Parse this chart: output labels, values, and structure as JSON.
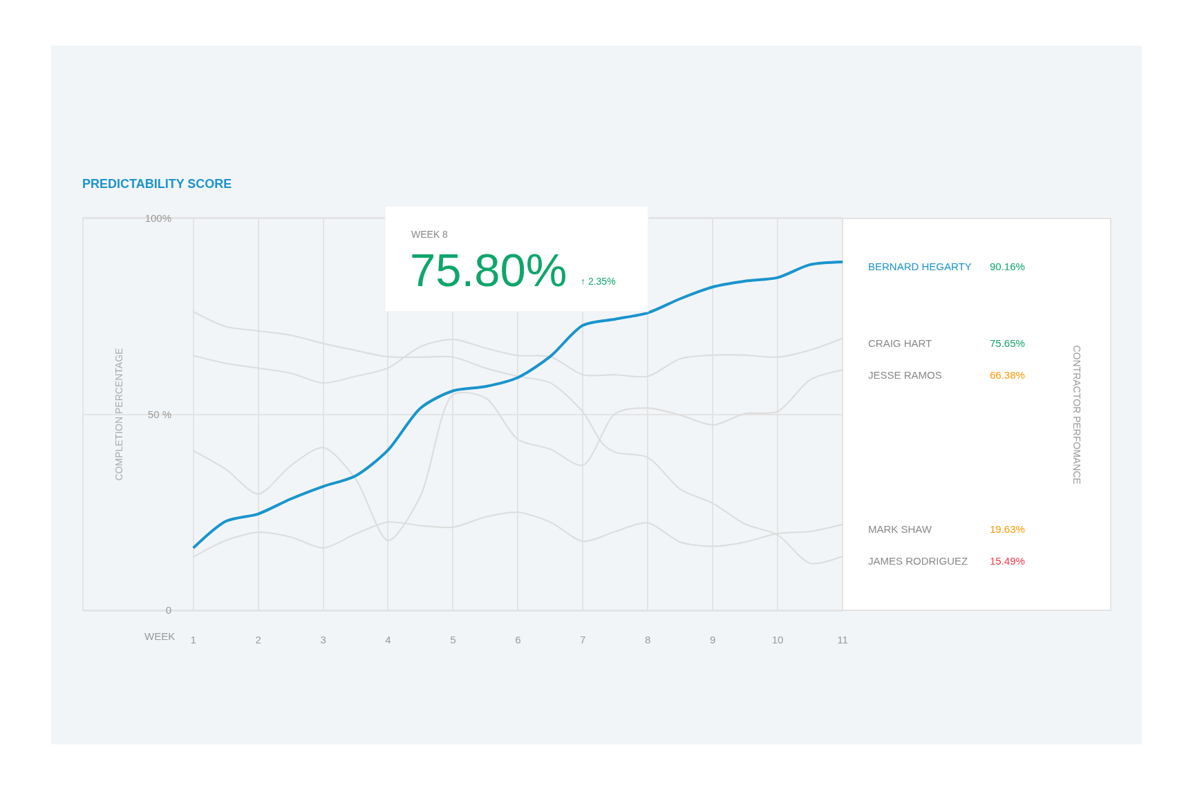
{
  "chart_data": {
    "type": "line",
    "title": "PREDICTABILITY SCORE",
    "xlabel": "WEEK",
    "ylabel": "COMPLETION PERCENTAGE",
    "xlim": [
      -0.7,
      11
    ],
    "xticks": [
      1,
      2,
      3,
      4,
      5,
      6,
      7,
      8,
      9,
      10,
      11
    ],
    "ylim": [
      0,
      100
    ],
    "yticks": [
      0,
      {
        "value": 50,
        "label": "50 %"
      },
      {
        "value": 100,
        "label": "100%"
      }
    ],
    "grid": true,
    "marker": "none",
    "line_style": "solid",
    "series": [
      {
        "name": "BERNARD HEGARTY",
        "color": "#1a94cc",
        "x": [
          1,
          1.5,
          2,
          2.5,
          3,
          3.5,
          4,
          4.5,
          5,
          5.5,
          6,
          6.5,
          7,
          7.5,
          8,
          8.5,
          9,
          9.5,
          10,
          10.5,
          11
        ],
        "values": [
          15.9,
          22.7,
          24.6,
          28.4,
          31.6,
          34.3,
          40.9,
          51.6,
          56.0,
          57.1,
          59.4,
          64.8,
          72.7,
          74.3,
          75.9,
          79.5,
          82.5,
          84.0,
          84.9,
          88.2,
          88.9
        ]
      },
      {
        "name": "CRAIG HART",
        "color": "#dddddd",
        "x": [
          1,
          1.5,
          2,
          2.5,
          3,
          3.5,
          4,
          4.5,
          5,
          5.5,
          6,
          6.5,
          7,
          7.5,
          8,
          8.5,
          9,
          9.5,
          10,
          10.5,
          11
        ],
        "values": [
          65.0,
          63.0,
          61.8,
          60.5,
          58.0,
          59.7,
          61.8,
          67.3,
          69.1,
          66.9,
          65.0,
          64.7,
          60.1,
          60.1,
          59.7,
          64.2,
          65.1,
          65.1,
          64.6,
          66.4,
          69.4
        ]
      },
      {
        "name": "JESSE RAMOS",
        "color": "#dddddd",
        "x": [
          1,
          1.5,
          2,
          2.5,
          3,
          3.5,
          4,
          4.5,
          5,
          5.5,
          6,
          6.5,
          7,
          7.5,
          8,
          8.5,
          9,
          9.5,
          10,
          10.5,
          11
        ],
        "values": [
          40.7,
          36.0,
          29.7,
          36.9,
          41.5,
          33.5,
          17.8,
          29.2,
          55.0,
          54.2,
          43.6,
          41.1,
          37.0,
          50.2,
          51.6,
          49.8,
          47.3,
          50.2,
          50.7,
          58.8,
          61.3
        ]
      },
      {
        "name": "MARK SHAW",
        "color": "#dddddd",
        "x": [
          1,
          1.5,
          2,
          2.5,
          3,
          3.5,
          4,
          4.5,
          5,
          5.5,
          6,
          6.5,
          7,
          7.5,
          8,
          8.5,
          9,
          9.5,
          10,
          10.5,
          11
        ],
        "values": [
          13.6,
          17.8,
          19.9,
          18.7,
          15.9,
          19.5,
          22.5,
          21.6,
          21.2,
          23.8,
          25.0,
          22.5,
          17.6,
          20.1,
          22.3,
          17.4,
          16.3,
          17.4,
          19.6,
          20.1,
          21.9
        ]
      },
      {
        "name": "JAMES RODRIGUEZ",
        "color": "#dddddd",
        "x": [
          1,
          1.5,
          2,
          2.5,
          3,
          3.5,
          4,
          4.5,
          5,
          5.5,
          6,
          6.5,
          7,
          7.3,
          7.5,
          8,
          8.5,
          9,
          9.5,
          10,
          10.5,
          11
        ],
        "values": [
          76.2,
          72.4,
          71.3,
          70.2,
          68.1,
          66.3,
          64.7,
          64.6,
          64.6,
          61.8,
          59.7,
          58.0,
          50.6,
          42.6,
          40.3,
          39.0,
          30.9,
          27.3,
          22.0,
          19.2,
          12.0,
          13.8
        ]
      }
    ],
    "annotations": [
      "WEEK 8",
      {
        "text": "75.80%",
        "x": 8,
        "y": 75.8
      },
      "↑ 2.35%",
      "90.16%",
      "75.65%",
      "66.38%",
      "19.63%",
      "15.49%",
      "CONTRACTOR PERFOMANCE"
    ]
  }
}
